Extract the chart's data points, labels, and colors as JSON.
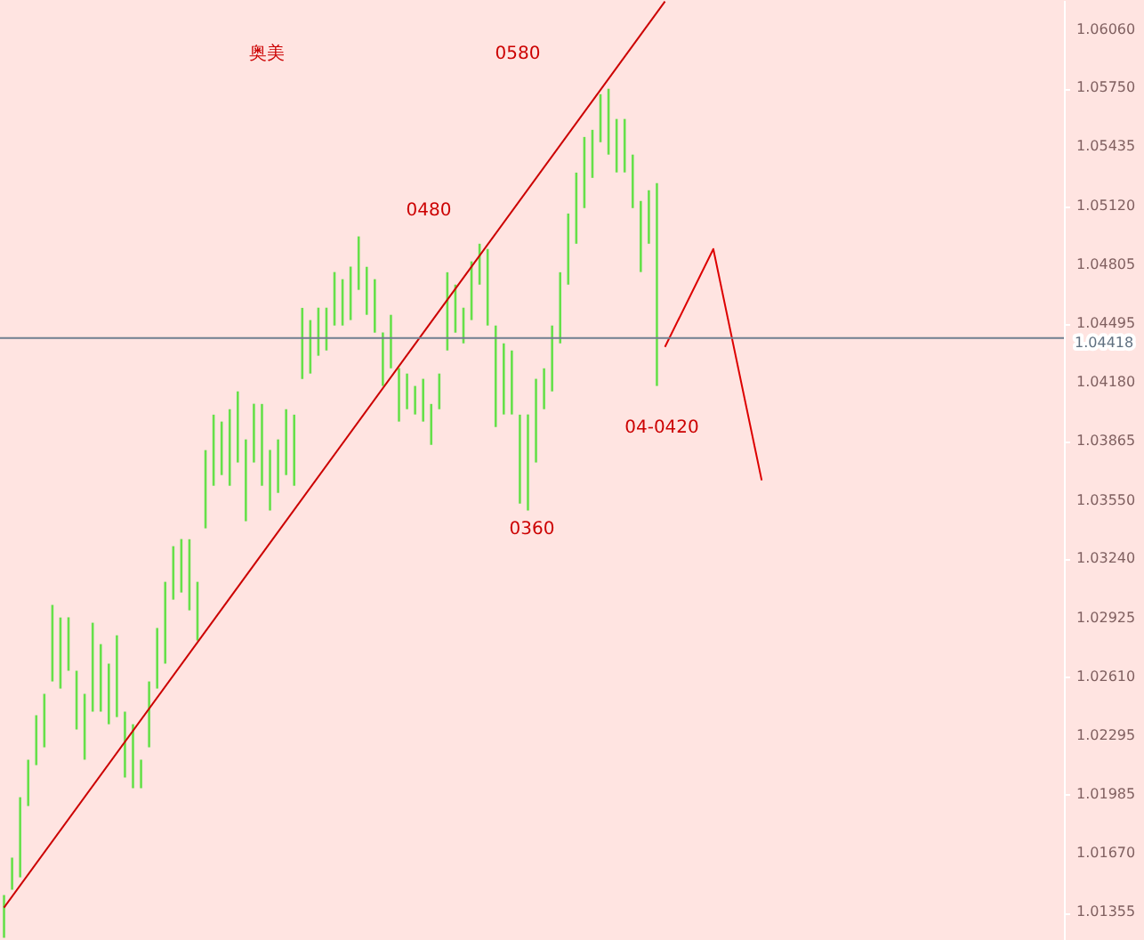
{
  "chart_data": {
    "type": "bar",
    "categories": [
      null,
      null,
      null,
      null,
      null,
      null,
      null,
      null,
      null,
      null,
      null,
      null,
      null,
      null,
      null,
      null,
      null,
      null,
      null,
      null,
      null,
      null,
      null,
      null,
      null,
      null,
      null,
      null,
      null,
      null,
      null,
      null,
      null,
      null,
      null,
      null,
      null,
      null,
      null,
      null,
      null,
      null,
      null,
      null,
      null,
      null,
      null,
      null,
      null,
      null,
      null,
      null,
      null,
      null,
      null,
      null,
      null,
      null,
      null,
      null,
      null,
      null,
      null,
      null,
      null,
      null,
      null,
      null,
      null,
      null,
      null,
      null,
      null,
      null,
      null,
      null,
      null,
      null,
      null,
      null,
      null,
      null,
      null,
      null,
      null,
      null,
      null,
      null,
      null,
      null,
      null,
      null,
      null,
      null,
      null,
      null,
      null,
      null,
      null,
      null,
      null,
      null,
      null,
      null,
      null,
      null,
      null,
      null,
      null,
      null,
      null,
      null,
      null,
      null,
      null,
      null,
      null,
      null,
      null,
      null,
      null,
      null,
      null,
      null,
      null,
      null,
      null,
      null,
      null,
      null,
      null,
      null
    ],
    "series": [
      {
        "type": "bar",
        "color": "#66e04a",
        "base": [
          1.01222,
          1.01478,
          1.01544,
          1.01924,
          1.02142,
          1.02237,
          1.02588,
          1.0255,
          1.02645,
          1.02332,
          1.02171,
          1.02427,
          1.02427,
          1.0236,
          1.02398,
          1.02076,
          1.02019,
          1.02019,
          1.02237,
          1.0255,
          1.02683,
          1.03024,
          1.03062,
          1.02967,
          1.02806,
          1.03404,
          1.03631,
          1.03688,
          1.03631,
          1.03755,
          1.03442,
          1.03755,
          1.03631,
          1.03499,
          1.03593,
          1.03688,
          1.03631,
          1.042,
          1.04229,
          1.04324,
          1.04352,
          1.04485,
          1.04485,
          1.04514,
          1.04675,
          1.04542,
          1.04447,
          1.04163,
          1.04257,
          1.03973,
          1.04039,
          1.04011,
          1.03973,
          1.03849,
          1.04039,
          1.04352,
          1.04447,
          1.0439,
          1.04514,
          1.04703,
          1.04485,
          1.03944,
          1.04011,
          1.04011,
          1.03536,
          1.03499,
          1.03755,
          1.04039,
          1.04134,
          1.0439,
          1.04703,
          1.04921,
          1.05111,
          1.05272,
          1.05462,
          1.05396,
          1.05301,
          1.05301,
          1.05111,
          1.0477,
          1.04921,
          1.04163,
          null,
          null,
          null,
          null,
          null,
          null,
          null,
          null,
          null,
          null,
          null,
          null,
          null,
          null,
          null,
          null,
          null,
          null,
          null,
          null,
          null,
          null,
          null,
          null,
          null,
          null,
          null,
          null,
          null,
          null,
          null,
          null,
          null,
          null,
          null,
          null,
          null,
          null,
          null,
          null,
          null,
          null,
          null,
          null,
          null,
          null,
          null,
          null,
          null,
          null
        ],
        "values": [
          0.00228,
          0.00171,
          0.00427,
          0.00247,
          0.00266,
          0.00285,
          0.00408,
          0.00379,
          0.00285,
          0.00313,
          0.00351,
          0.00474,
          0.0036,
          0.00323,
          0.00436,
          0.00351,
          0.00341,
          0.00152,
          0.00351,
          0.00323,
          0.00436,
          0.00285,
          0.00285,
          0.00379,
          0.00313,
          0.00417,
          0.00379,
          0.00285,
          0.00408,
          0.00379,
          0.00436,
          0.00313,
          0.00436,
          0.00323,
          0.00285,
          0.00351,
          0.00379,
          0.00379,
          0.00285,
          0.00256,
          0.00228,
          0.00285,
          0.00247,
          0.00285,
          0.00285,
          0.00256,
          0.00285,
          0.00285,
          0.00285,
          0.00285,
          0.0019,
          0.00152,
          0.00228,
          0.00218,
          0.0019,
          0.00417,
          0.00256,
          0.0019,
          0.00313,
          0.00218,
          0.00408,
          0.00541,
          0.00379,
          0.00341,
          0.00474,
          0.00512,
          0.00446,
          0.00218,
          0.00351,
          0.00379,
          0.00379,
          0.00379,
          0.00379,
          0.00256,
          0.00256,
          0.00351,
          0.00285,
          0.00285,
          0.00285,
          0.00379,
          0.00285,
          0.01081,
          null,
          null,
          null,
          null,
          null,
          null,
          null,
          null,
          null,
          null,
          null,
          null,
          null,
          null,
          null,
          null,
          null,
          null,
          null,
          null,
          null,
          null,
          null,
          null,
          null,
          null,
          null,
          null,
          null,
          null,
          null,
          null,
          null,
          null,
          null,
          null,
          null,
          null,
          null,
          null,
          null,
          null,
          null,
          null,
          null,
          null,
          null,
          null,
          null,
          null
        ]
      },
      {
        "type": "line",
        "color": "#cc0000",
        "values": [
          1.01383,
          null,
          null,
          null,
          null,
          null,
          null,
          null,
          null,
          null,
          null,
          null,
          null,
          null,
          null,
          null,
          null,
          null,
          null,
          null,
          null,
          null,
          null,
          null,
          null,
          null,
          null,
          null,
          null,
          null,
          null,
          null,
          null,
          null,
          null,
          null,
          null,
          null,
          null,
          null,
          null,
          null,
          null,
          null,
          null,
          null,
          null,
          null,
          null,
          null,
          null,
          null,
          null,
          null,
          null,
          null,
          null,
          null,
          null,
          null,
          null,
          null,
          null,
          null,
          null,
          null,
          null,
          null,
          null,
          null,
          null,
          null,
          null,
          null,
          null,
          null,
          null,
          null,
          null,
          null,
          null,
          null,
          1.06212,
          null,
          null,
          null,
          null,
          null,
          null,
          null,
          null,
          null,
          null,
          null,
          null,
          null,
          null,
          null,
          null,
          null,
          null,
          null,
          null,
          null,
          null,
          null,
          null,
          null,
          null,
          null,
          null,
          null,
          null,
          null,
          null,
          null,
          null,
          null,
          null,
          null,
          null,
          null,
          null,
          null,
          null,
          null,
          null,
          null,
          null,
          null,
          null,
          null
        ]
      },
      {
        "type": "line",
        "color": "#dd0000",
        "values": [
          null,
          null,
          null,
          null,
          null,
          null,
          null,
          null,
          null,
          null,
          null,
          null,
          null,
          null,
          null,
          null,
          null,
          null,
          null,
          null,
          null,
          null,
          null,
          null,
          null,
          null,
          null,
          null,
          null,
          null,
          null,
          null,
          null,
          null,
          null,
          null,
          null,
          null,
          null,
          null,
          null,
          null,
          null,
          null,
          null,
          null,
          null,
          null,
          null,
          null,
          null,
          null,
          null,
          null,
          null,
          null,
          null,
          null,
          null,
          null,
          null,
          null,
          null,
          null,
          null,
          null,
          null,
          null,
          null,
          null,
          null,
          null,
          null,
          null,
          null,
          null,
          null,
          null,
          null,
          null,
          null,
          null,
          1.04371,
          null,
          null,
          null,
          null,
          null,
          1.04893,
          null,
          null,
          null,
          null,
          null,
          1.0366,
          null,
          null,
          null,
          null,
          null,
          null,
          null,
          null,
          null,
          null,
          null,
          null,
          null,
          null,
          null,
          null,
          null,
          null,
          null,
          null,
          null,
          null,
          null,
          null,
          null,
          null,
          null,
          null,
          null,
          null,
          null,
          null,
          null,
          null,
          null,
          null,
          null
        ]
      }
    ],
    "ylim": [
      1.0121,
      1.0622
    ],
    "yticks": [
      {
        "value": 1.0606,
        "label": "1.06060"
      },
      {
        "value": 1.0575,
        "label": "1.05750"
      },
      {
        "value": 1.05435,
        "label": "1.05435"
      },
      {
        "value": 1.0512,
        "label": "1.05120"
      },
      {
        "value": 1.04805,
        "label": "1.04805"
      },
      {
        "value": 1.04495,
        "label": "1.04495"
      },
      {
        "value": 1.0418,
        "label": "1.04180"
      },
      {
        "value": 1.03865,
        "label": "1.03865"
      },
      {
        "value": 1.0355,
        "label": "1.03550"
      },
      {
        "value": 1.0324,
        "label": "1.03240"
      },
      {
        "value": 1.02925,
        "label": "1.02925"
      },
      {
        "value": 1.0261,
        "label": "1.02610"
      },
      {
        "value": 1.02295,
        "label": "1.02295"
      },
      {
        "value": 1.01985,
        "label": "1.01985"
      },
      {
        "value": 1.0167,
        "label": "1.01670"
      },
      {
        "value": 1.01355,
        "label": "1.01355"
      }
    ],
    "tick_labels": "y",
    "ref_lines": [
      {
        "axis": "y",
        "value": 1.04418,
        "label": "1.04418",
        "color": "#6f7f8f"
      }
    ],
    "annotations": [
      "奥美",
      "0580",
      "0480",
      "0360",
      "04-0420"
    ]
  }
}
